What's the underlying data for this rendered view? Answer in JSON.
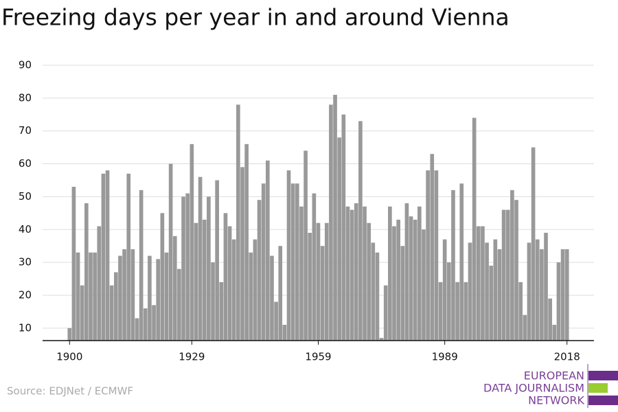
{
  "chart_data": {
    "type": "bar",
    "title": "Freezing days per year in and around Vienna",
    "x": [
      1900,
      1901,
      1902,
      1903,
      1904,
      1905,
      1906,
      1907,
      1908,
      1909,
      1910,
      1911,
      1912,
      1913,
      1914,
      1915,
      1916,
      1917,
      1918,
      1919,
      1920,
      1921,
      1922,
      1923,
      1924,
      1925,
      1926,
      1927,
      1928,
      1929,
      1930,
      1931,
      1932,
      1933,
      1934,
      1935,
      1936,
      1937,
      1938,
      1939,
      1940,
      1941,
      1942,
      1943,
      1944,
      1945,
      1946,
      1947,
      1948,
      1949,
      1950,
      1951,
      1952,
      1953,
      1954,
      1955,
      1956,
      1957,
      1958,
      1959,
      1960,
      1961,
      1962,
      1963,
      1964,
      1965,
      1966,
      1967,
      1968,
      1969,
      1970,
      1971,
      1972,
      1973,
      1974,
      1975,
      1976,
      1977,
      1978,
      1979,
      1980,
      1981,
      1982,
      1983,
      1984,
      1985,
      1986,
      1987,
      1988,
      1989,
      1990,
      1991,
      1992,
      1993,
      1994,
      1995,
      1996,
      1997,
      1998,
      1999,
      2000,
      2001,
      2002,
      2003,
      2004,
      2005,
      2006,
      2007,
      2008,
      2009,
      2010,
      2011,
      2012,
      2013,
      2014,
      2015,
      2016,
      2017,
      2018
    ],
    "values": [
      10,
      53,
      33,
      23,
      48,
      33,
      33,
      41,
      57,
      58,
      23,
      27,
      32,
      34,
      57,
      34,
      13,
      52,
      16,
      32,
      17,
      31,
      45,
      33,
      60,
      38,
      28,
      50,
      51,
      66,
      42,
      56,
      43,
      50,
      30,
      55,
      24,
      45,
      41,
      37,
      78,
      59,
      66,
      33,
      37,
      49,
      54,
      61,
      32,
      18,
      35,
      11,
      58,
      54,
      54,
      47,
      64,
      39,
      51,
      42,
      35,
      42,
      78,
      81,
      68,
      75,
      47,
      46,
      48,
      73,
      47,
      42,
      36,
      33,
      7,
      23,
      47,
      41,
      43,
      35,
      48,
      44,
      43,
      47,
      40,
      58,
      63,
      58,
      24,
      37,
      30,
      52,
      24,
      54,
      24,
      36,
      74,
      41,
      41,
      36,
      29,
      37,
      34,
      46,
      46,
      52,
      49,
      24,
      14,
      36,
      65,
      37,
      34,
      39,
      19,
      11,
      30,
      34,
      34
    ],
    "color": "#999999",
    "ylim": [
      6.2,
      90
    ],
    "yticks": [
      10,
      20,
      30,
      40,
      50,
      60,
      70,
      80,
      90
    ],
    "xlim": [
      1893.6,
      2024.4
    ],
    "xticks": [
      1900,
      1929,
      1959,
      1989,
      2018
    ],
    "grid": true,
    "source": "Source: EDJNet / ECMWF"
  },
  "logo": {
    "lines": [
      "EUROPEAN",
      "DATA JOURNALISM",
      "NETWORK"
    ]
  }
}
